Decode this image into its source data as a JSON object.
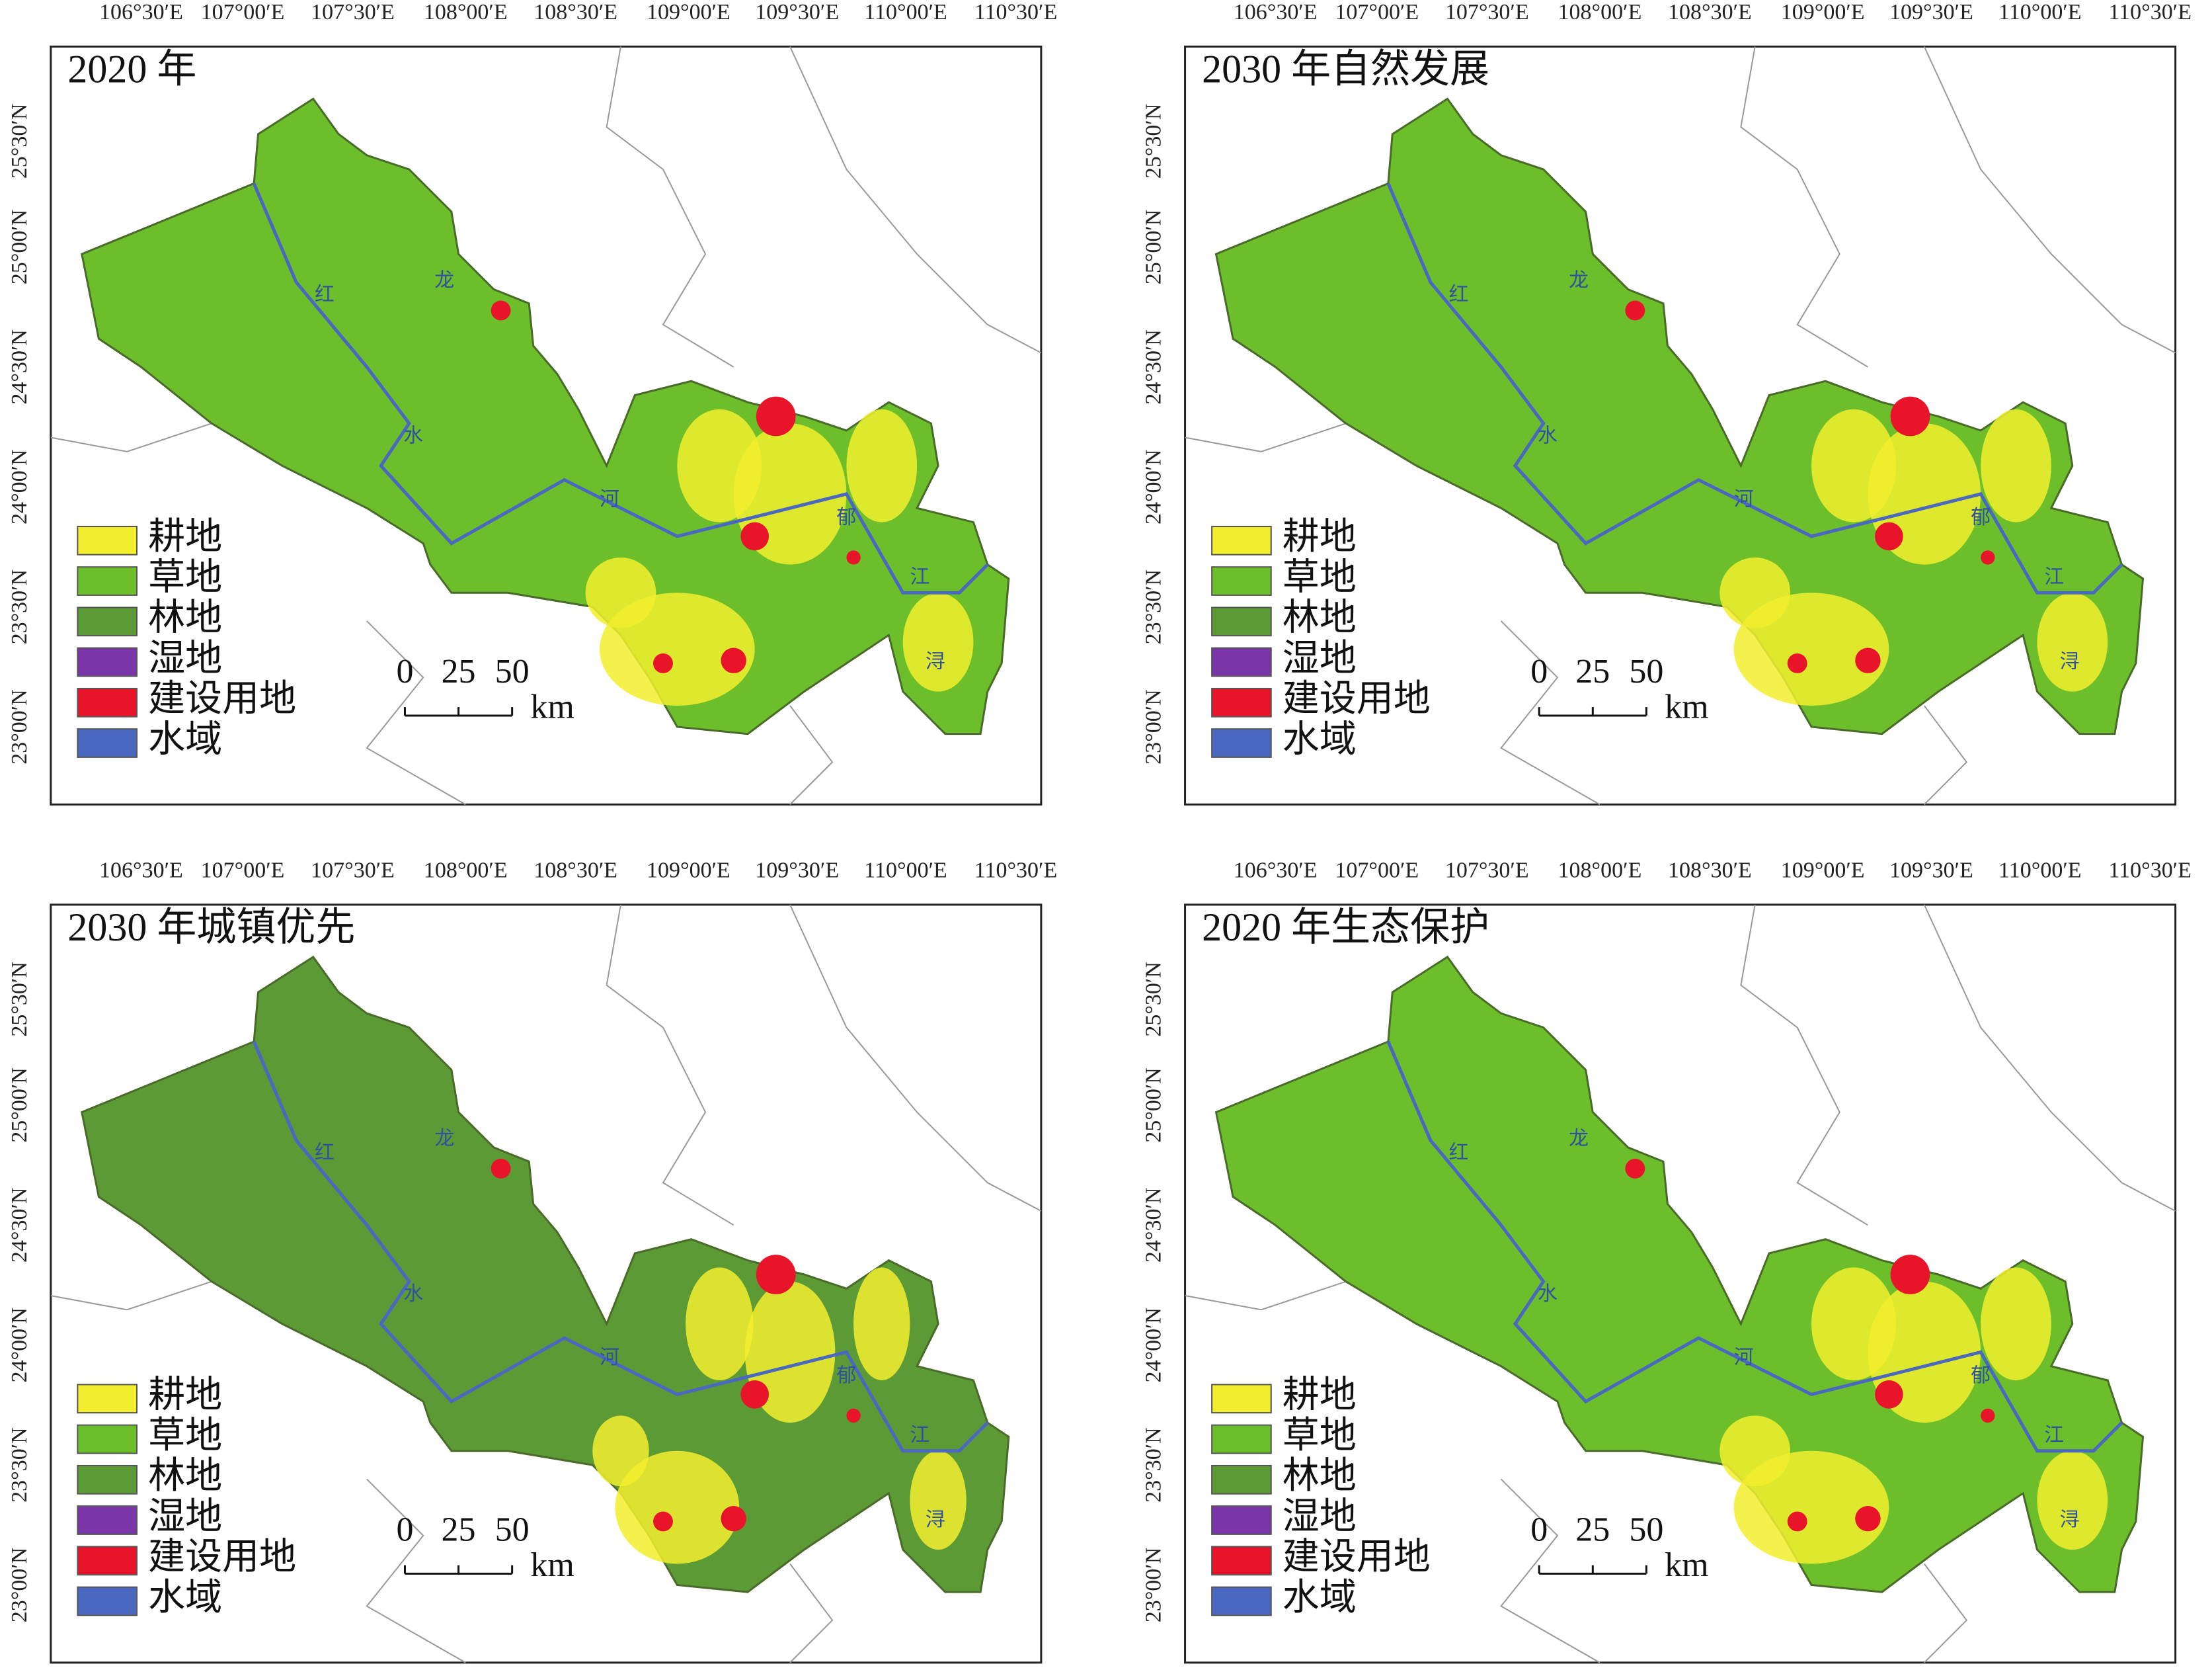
{
  "panels": [
    {
      "title": "2020 年"
    },
    {
      "title": "2030 年自然发展"
    },
    {
      "title": "2030 年城镇优先"
    },
    {
      "title": "2020 年生态保护"
    }
  ],
  "x_labels": [
    "106°30′E",
    "107°00′E",
    "107°30′E",
    "108°00′E",
    "108°30′E",
    "109°00′E",
    "109°30′E",
    "110°00′E",
    "110°30′E"
  ],
  "y_labels": [
    "25°30′N",
    "25°00′N",
    "24°30′N",
    "24°00′N",
    "23°30′N",
    "23°00′N"
  ],
  "legend": [
    {
      "label": "耕地",
      "color": "#f2ee2e"
    },
    {
      "label": "草地",
      "color": "#6cbf2a"
    },
    {
      "label": "林地",
      "color": "#5c9a36"
    },
    {
      "label": "湿地",
      "color": "#7a35a8"
    },
    {
      "label": "建设用地",
      "color": "#e8142a"
    },
    {
      "label": "水域",
      "color": "#4a68c0"
    }
  ],
  "scale_bar": {
    "ticks": [
      0,
      25,
      50
    ],
    "unit": "km"
  },
  "river_labels": [
    "红",
    "龙",
    "水",
    "河",
    "郁",
    "江",
    "浔"
  ]
}
